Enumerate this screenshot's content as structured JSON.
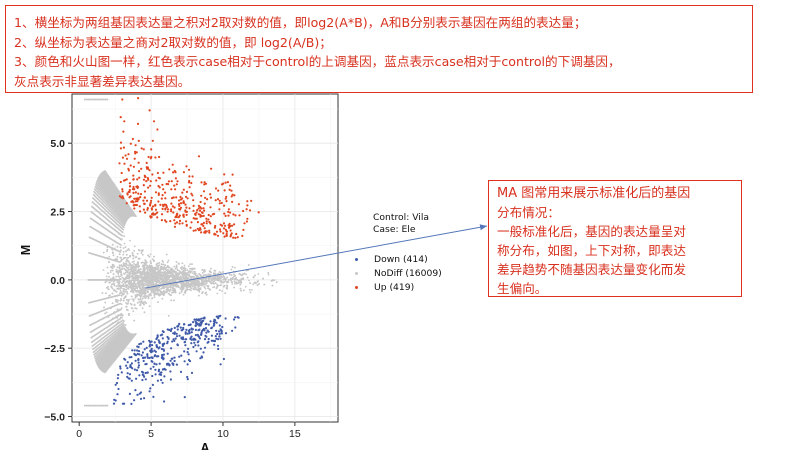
{
  "notes": {
    "line1": "1、横坐标为两组基因表达量之积对2取对数的值，即log2(A*B)，A和B分别表示基因在两组的表达量；",
    "line2": "2、纵坐标为表达量之商对2取对数的值，即 log2(A/B)；",
    "line3": "3、颜色和火山图一样，红色表示case相对于control的上调基因，蓝点表示case相对于control的下调基因，",
    "line4": "灰点表示非显著差异表达基因。"
  },
  "side_note": {
    "line1": "MA 图常用来展示标准化后的基因",
    "line2": "分布情况：",
    "line3": "一般标准化后，基因的表达量呈对",
    "line4": "称分布，如图，上下对称，即表达",
    "line5": "差异趋势不随基因表达量变化而发",
    "line6": "生偏向。"
  },
  "legend": {
    "control_label": "Control: Vila",
    "case_label": "Case:   Ele"
  },
  "colors": {
    "up": "#e0461f",
    "down": "#3f5aa8",
    "nodiff": "#c7c7c7",
    "annotation": "#d8311f",
    "arrow": "#5577bb"
  },
  "chart_data": {
    "type": "scatter",
    "xlabel": "A",
    "ylabel": "M",
    "xlim": [
      -0.5,
      18
    ],
    "ylim": [
      -5.2,
      6.8
    ],
    "xticks": [
      0,
      5,
      10,
      15
    ],
    "yticks": [
      -5.0,
      -2.5,
      0.0,
      2.5,
      5.0
    ],
    "ytick_labels": [
      "−5.0",
      "−2.5",
      "0.0",
      "2.5",
      "5.0"
    ],
    "grid": true,
    "legend_position": "right",
    "series": [
      {
        "name": "Down (414)",
        "key": "down",
        "count": 414
      },
      {
        "name": "NoDiff (16009)",
        "key": "nodiff",
        "count": 16009
      },
      {
        "name": "Up (419)",
        "key": "up",
        "count": 419
      }
    ]
  }
}
